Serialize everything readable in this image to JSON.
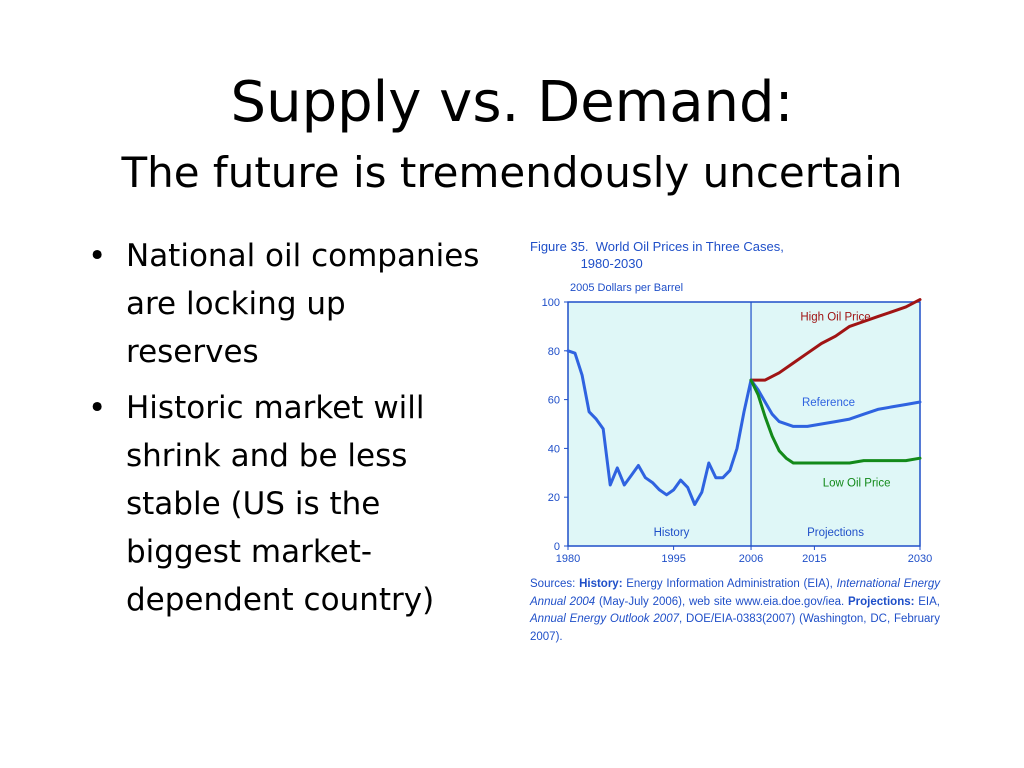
{
  "slide": {
    "title": "Supply vs. Demand:",
    "subtitle": "The future is tremendously uncertain",
    "bullets": [
      "National oil companies are locking up reserves",
      "Historic market will shrink and be less stable (US is the biggest market-dependent country)"
    ]
  },
  "figure": {
    "caption": "Figure 35.  World Oil Prices in Three Cases,\n              1980-2030",
    "unit_label": "2005 Dollars per Barrel",
    "source": {
      "label1": "Sources: ",
      "history_label": "History:",
      "text1": " Energy Information Administration (EIA), ",
      "italic1": "International Energy Annual 2004",
      "text2": " (May-July 2006), web site www.eia.doe.gov/iea. ",
      "projections_label": "Projections:",
      "text3": " EIA, ",
      "italic2": "Annual Energy Outlook 2007",
      "text4": ", DOE/EIA-0383(2007) (Washington, DC, February 2007)."
    }
  },
  "colors": {
    "accent": "#1f4fc8",
    "plot_bg": "#dff7f7",
    "reference": "#2f63e0",
    "high": "#a01414",
    "low": "#138a1a"
  },
  "chart_data": {
    "type": "line",
    "xlim": [
      1980,
      2030
    ],
    "ylim": [
      0,
      100
    ],
    "x_ticks": [
      1980,
      1995,
      2006,
      2015,
      2030
    ],
    "y_ticks": [
      0,
      20,
      40,
      60,
      80,
      100
    ],
    "divider_x": 2006,
    "region_labels": [
      "History",
      "Projections"
    ],
    "series": [
      {
        "name": "History",
        "x": [
          1980,
          1981,
          1982,
          1983,
          1984,
          1985,
          1986,
          1987,
          1988,
          1989,
          1990,
          1991,
          1992,
          1993,
          1994,
          1995,
          1996,
          1997,
          1998,
          1999,
          2000,
          2001,
          2002,
          2003,
          2004,
          2005,
          2006
        ],
        "y": [
          80,
          79,
          70,
          55,
          52,
          48,
          25,
          32,
          25,
          29,
          33,
          28,
          26,
          23,
          21,
          23,
          27,
          24,
          17,
          22,
          34,
          28,
          28,
          31,
          40,
          55,
          68
        ]
      },
      {
        "name": "High Oil Price",
        "x": [
          2006,
          2008,
          2010,
          2012,
          2014,
          2016,
          2018,
          2020,
          2022,
          2024,
          2026,
          2028,
          2030
        ],
        "y": [
          68,
          68,
          71,
          75,
          79,
          83,
          86,
          90,
          92,
          94,
          96,
          98,
          101
        ]
      },
      {
        "name": "Reference",
        "x": [
          2006,
          2007,
          2008,
          2009,
          2010,
          2012,
          2014,
          2016,
          2018,
          2020,
          2022,
          2024,
          2026,
          2028,
          2030
        ],
        "y": [
          68,
          64,
          59,
          54,
          51,
          49,
          49,
          50,
          51,
          52,
          54,
          56,
          57,
          58,
          59
        ]
      },
      {
        "name": "Low Oil Price",
        "x": [
          2006,
          2007,
          2008,
          2009,
          2010,
          2011,
          2012,
          2014,
          2016,
          2018,
          2020,
          2022,
          2024,
          2026,
          2028,
          2030
        ],
        "y": [
          68,
          62,
          53,
          45,
          39,
          36,
          34,
          34,
          34,
          34,
          34,
          35,
          35,
          35,
          35,
          36
        ]
      }
    ]
  }
}
